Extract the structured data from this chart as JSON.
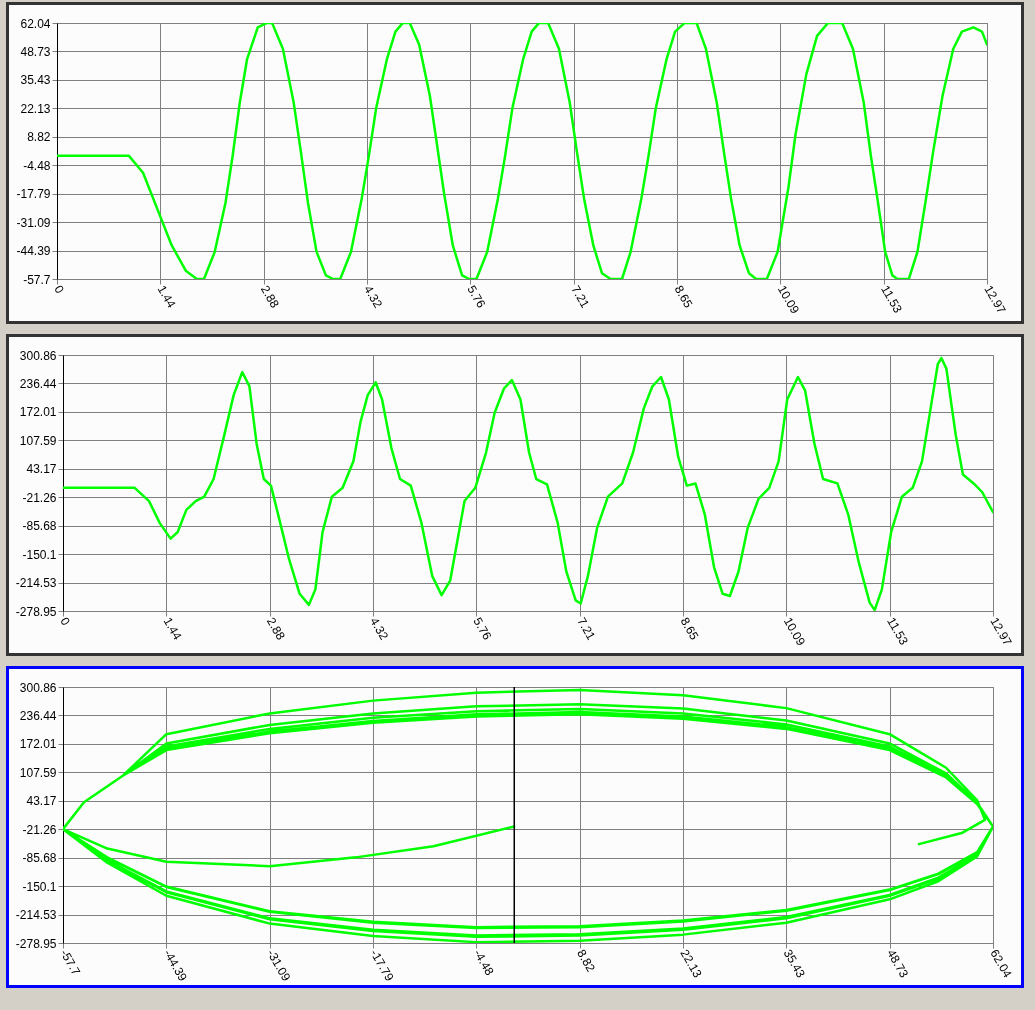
{
  "chart_data": [
    {
      "type": "line",
      "color": "#00ff00",
      "grid": true,
      "xlim": [
        0,
        12.97
      ],
      "xticks": [
        0,
        1.44,
        2.88,
        4.32,
        5.76,
        7.21,
        8.65,
        10.09,
        11.53,
        12.97
      ],
      "ylim": [
        -57.7,
        62.04
      ],
      "yticks": [
        62.04,
        48.73,
        35.43,
        22.13,
        8.82,
        -4.48,
        -17.79,
        -31.09,
        -44.39,
        -57.7
      ],
      "x": [
        0,
        1.0,
        1.2,
        1.4,
        1.6,
        1.8,
        1.95,
        2.05,
        2.2,
        2.35,
        2.45,
        2.55,
        2.65,
        2.8,
        2.92,
        3.0,
        3.15,
        3.3,
        3.4,
        3.5,
        3.62,
        3.75,
        3.85,
        3.95,
        4.1,
        4.25,
        4.35,
        4.45,
        4.6,
        4.72,
        4.82,
        4.92,
        5.05,
        5.2,
        5.3,
        5.4,
        5.52,
        5.65,
        5.75,
        5.85,
        6.0,
        6.15,
        6.25,
        6.35,
        6.5,
        6.62,
        6.72,
        6.85,
        7.0,
        7.15,
        7.25,
        7.35,
        7.48,
        7.6,
        7.72,
        7.88,
        8.0,
        8.15,
        8.25,
        8.35,
        8.5,
        8.62,
        8.75,
        8.92,
        9.05,
        9.2,
        9.3,
        9.4,
        9.52,
        9.65,
        9.75,
        9.9,
        10.05,
        10.2,
        10.3,
        10.45,
        10.6,
        10.75,
        10.95,
        11.1,
        11.25,
        11.35,
        11.45,
        11.55,
        11.65,
        11.72,
        11.88,
        12.0,
        12.12,
        12.22,
        12.35,
        12.5,
        12.62,
        12.78,
        12.9,
        12.97
      ],
      "values": [
        0,
        0,
        -8,
        -25,
        -42,
        -54,
        -57.7,
        -57.7,
        -45,
        -22,
        0,
        25,
        45,
        60,
        62,
        62,
        50,
        25,
        2,
        -22,
        -45,
        -56,
        -57.7,
        -57.7,
        -45,
        -20,
        0,
        22,
        45,
        58,
        62,
        62,
        52,
        28,
        5,
        -18,
        -42,
        -56,
        -57.7,
        -57.7,
        -45,
        -20,
        0,
        22,
        45,
        58,
        62,
        62,
        50,
        25,
        2,
        -20,
        -42,
        -55,
        -57.7,
        -57.7,
        -45,
        -20,
        0,
        22,
        45,
        58,
        62,
        62,
        50,
        25,
        2,
        -20,
        -42,
        -55,
        -57.7,
        -57.7,
        -45,
        -15,
        10,
        38,
        56,
        62,
        62,
        50,
        25,
        0,
        -22,
        -45,
        -56,
        -57.7,
        -57.7,
        -45,
        -20,
        2,
        28,
        50,
        58,
        60,
        58,
        52
      ]
    },
    {
      "type": "line",
      "color": "#00ff00",
      "grid": true,
      "xlim": [
        0,
        12.97
      ],
      "xticks": [
        0,
        1.44,
        2.88,
        4.32,
        5.76,
        7.21,
        8.65,
        10.09,
        11.53,
        12.97
      ],
      "ylim": [
        -278.95,
        300.86
      ],
      "yticks": [
        300.86,
        236.44,
        172.01,
        107.59,
        43.17,
        -21.26,
        -85.68,
        -150.1,
        -214.53,
        -278.95
      ],
      "x": [
        0,
        1.0,
        1.2,
        1.35,
        1.5,
        1.6,
        1.72,
        1.85,
        1.97,
        2.1,
        2.25,
        2.38,
        2.5,
        2.6,
        2.7,
        2.8,
        2.9,
        3.0,
        3.15,
        3.3,
        3.43,
        3.52,
        3.62,
        3.75,
        3.9,
        4.05,
        4.15,
        4.25,
        4.36,
        4.45,
        4.58,
        4.7,
        4.85,
        5.0,
        5.15,
        5.28,
        5.4,
        5.5,
        5.6,
        5.75,
        5.9,
        6.02,
        6.15,
        6.26,
        6.38,
        6.5,
        6.6,
        6.75,
        6.9,
        7.02,
        7.15,
        7.22,
        7.32,
        7.45,
        7.6,
        7.8,
        7.95,
        8.1,
        8.22,
        8.34,
        8.45,
        8.58,
        8.7,
        8.82,
        8.95,
        9.08,
        9.2,
        9.3,
        9.42,
        9.55,
        9.7,
        9.85,
        9.98,
        10.1,
        10.25,
        10.35,
        10.48,
        10.6,
        10.8,
        10.95,
        11.1,
        11.25,
        11.32,
        11.42,
        11.55,
        11.7,
        11.85,
        11.98,
        12.1,
        12.2,
        12.25,
        12.32,
        12.45,
        12.55,
        12.7,
        12.82,
        12.97
      ],
      "values": [
        0,
        0,
        -30,
        -80,
        -115,
        -100,
        -50,
        -30,
        -20,
        20,
        120,
        210,
        262,
        230,
        100,
        20,
        5,
        -60,
        -160,
        -240,
        -265,
        -230,
        -100,
        -20,
        0,
        60,
        150,
        210,
        239,
        200,
        90,
        20,
        5,
        -80,
        -200,
        -243,
        -210,
        -120,
        -30,
        0,
        80,
        170,
        225,
        244,
        200,
        80,
        20,
        8,
        -80,
        -190,
        -255,
        -262,
        -200,
        -90,
        -20,
        10,
        80,
        180,
        230,
        251,
        200,
        70,
        5,
        10,
        -60,
        -180,
        -240,
        -245,
        -190,
        -90,
        -25,
        0,
        60,
        200,
        251,
        220,
        100,
        20,
        10,
        -60,
        -170,
        -260,
        -277,
        -230,
        -100,
        -20,
        0,
        60,
        180,
        280,
        294,
        270,
        120,
        30,
        10,
        -10,
        -55
      ]
    },
    {
      "type": "line",
      "color": "#00ff00",
      "grid": true,
      "xlim": [
        -57.7,
        62.04
      ],
      "xticks": [
        -57.7,
        -44.39,
        -31.09,
        -17.79,
        -4.48,
        8.82,
        22.13,
        35.43,
        48.73,
        62.04
      ],
      "ylim": [
        -278.95,
        300.86
      ],
      "yticks": [
        300.86,
        236.44,
        172.01,
        107.59,
        43.17,
        -21.26,
        -85.68,
        -150.1,
        -214.53,
        -278.95
      ],
      "ref_lines": [
        {
          "axis": "x",
          "value": 0.4,
          "color": "#000000"
        }
      ],
      "x": [
        0.4,
        -10,
        -20,
        -31.09,
        -44.39,
        -52,
        -57.7,
        -55,
        -50,
        -44.39,
        -31.09,
        -17.79,
        -4.48,
        8.82,
        22.13,
        35.43,
        48.73,
        56,
        60,
        62.04,
        60,
        55,
        48.73,
        35.43,
        22.13,
        8.82,
        -4.48,
        -17.79,
        -31.09,
        -44.39,
        -52,
        -57.7,
        -55,
        -50,
        -44.39,
        -31.09,
        -17.79,
        -4.48,
        8.82,
        22.13,
        35.43,
        48.73,
        56,
        60,
        62.04,
        60,
        55,
        48.73,
        35.43,
        22.13,
        8.82,
        -4.48,
        -17.79,
        -31.09,
        -44.39,
        -52,
        -57.7,
        -55,
        -50,
        -44.39,
        -31.09,
        -17.79,
        -4.48,
        8.82,
        22.13,
        35.43,
        48.73,
        56,
        60,
        62.04,
        60,
        55,
        48.73,
        35.43,
        22.13,
        8.82,
        -4.48,
        -17.79,
        -31.09,
        -44.39,
        -52,
        -57.7,
        -55,
        -50,
        -44.39,
        -31.09,
        -17.79,
        -4.48,
        8.82,
        22.13,
        35.43,
        48.73,
        56,
        60,
        62.04,
        60,
        55,
        48.73,
        35.43,
        22.13,
        8.82,
        -4.48,
        -17.79,
        -31.09,
        -44.39,
        -52,
        -57.7,
        -55,
        -50,
        -44.39,
        -31.09,
        -17.79,
        -4.48,
        8.82,
        22.13,
        35.43,
        48.73,
        56,
        60,
        62.04,
        60,
        55,
        48.73,
        35.43,
        22.13,
        8.82,
        -4.48,
        -17.79,
        -31.09,
        -44.39,
        -52,
        -57.7,
        -55,
        -50,
        -44.39,
        -31.09,
        -17.79,
        -4.48,
        8.82,
        22.13,
        35.43,
        48.73,
        56,
        60,
        61,
        58,
        52.5
      ],
      "values": [
        -15,
        -60,
        -85,
        -105,
        -95,
        -65,
        -21,
        40,
        100,
        173,
        215,
        241,
        257,
        262,
        252,
        225,
        173,
        105,
        39,
        -15,
        -80,
        -133,
        -172,
        -223,
        -249,
        -262,
        -265,
        -252,
        -225,
        -164,
        -93,
        -21,
        40,
        100,
        158,
        196,
        220,
        234,
        239,
        229,
        206,
        158,
        96,
        36,
        -15,
        -73,
        -122,
        -158,
        -204,
        -228,
        -241,
        -243,
        -231,
        -207,
        -151,
        -85,
        -21,
        40,
        100,
        161,
        200,
        224,
        239,
        244,
        234,
        210,
        161,
        98,
        37,
        -15,
        -79,
        -131,
        -170,
        -220,
        -246,
        -259,
        -262,
        -249,
        -223,
        -162,
        -92,
        -21,
        40,
        100,
        166,
        206,
        231,
        246,
        251,
        241,
        216,
        166,
        100,
        38,
        -15,
        -74,
        -123,
        -159,
        -206,
        -230,
        -243,
        -245,
        -233,
        -208,
        -152,
        -86,
        -21,
        40,
        100,
        166,
        206,
        231,
        246,
        251,
        241,
        216,
        166,
        100,
        38,
        -15,
        -83,
        -139,
        -180,
        -233,
        -260,
        -274,
        -277,
        -263,
        -235,
        -172,
        -97,
        -21,
        40,
        100,
        194,
        241,
        270,
        288,
        294,
        282,
        253,
        194,
        118,
        44,
        0,
        -30,
        -55
      ]
    }
  ]
}
